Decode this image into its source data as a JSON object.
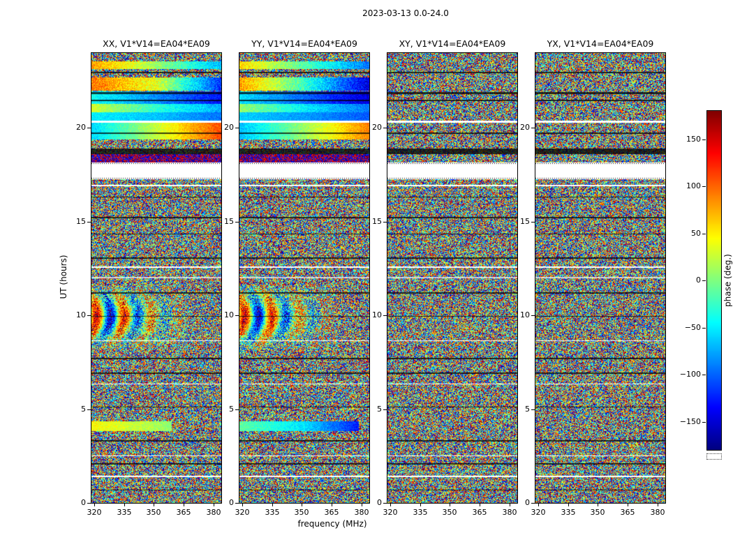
{
  "figure": {
    "title": "2023-03-13 0.0-24.0"
  },
  "chart_data": {
    "type": "heatmap",
    "title": "2023-03-13 0.0-24.0",
    "panels": [
      {
        "title": "XX, V1*V14=EA04*EA09"
      },
      {
        "title": "YY, V1*V14=EA04*EA09"
      },
      {
        "title": "XY, V1*V14=EA04*EA09"
      },
      {
        "title": "YX, V1*V14=EA04*EA09"
      }
    ],
    "xlabel": "frequency (MHz)",
    "ylabel": "UT (hours)",
    "x_ticks": [
      320,
      335,
      350,
      365,
      380
    ],
    "x_range": [
      318.75,
      383.75
    ],
    "y_ticks": [
      0,
      5,
      10,
      15,
      20
    ],
    "y_range": [
      0,
      24
    ],
    "value_field": "visibility phase",
    "noise_model": "uniform random phase -180..180 deg per pixel (incoherent speckle)",
    "colorbar": {
      "label": "phase (deg.)",
      "ticks": [
        150,
        100,
        50,
        0,
        -50,
        -100,
        -150
      ],
      "range": [
        -180,
        180
      ],
      "colormap": "jet"
    },
    "features": {
      "white_gaps": [
        [
          17.28,
          18.15
        ],
        [
          20.28,
          20.4
        ],
        [
          16.9,
          16.96
        ],
        [
          12.55,
          12.61
        ],
        [
          8.62,
          8.68
        ],
        [
          6.32,
          6.38
        ],
        [
          2.48,
          2.54
        ],
        [
          1.38,
          1.44
        ]
      ],
      "dark_rows": [
        [
          22.92,
          22.98
        ],
        [
          21.8,
          21.92
        ],
        [
          21.42,
          21.5
        ],
        [
          19.68,
          19.74
        ],
        [
          18.6,
          18.92
        ],
        [
          16.28,
          16.34
        ],
        [
          15.18,
          15.24
        ],
        [
          14.32,
          14.38
        ],
        [
          13.02,
          13.08
        ],
        [
          11.18,
          11.24
        ],
        [
          9.92,
          9.98
        ],
        [
          7.68,
          7.74
        ],
        [
          6.88,
          6.94
        ],
        [
          5.08,
          5.14
        ],
        [
          3.28,
          3.34
        ],
        [
          2.06,
          2.12
        ],
        [
          0.66,
          0.72
        ]
      ],
      "pale_rows": [
        [
          11.97,
          12.04
        ]
      ],
      "hot_rows": [
        [
          18.15,
          18.6
        ]
      ],
      "fringe_region": [
        8.2,
        11.6
      ],
      "smooth_bands_xx": [
        {
          "t0": 23.15,
          "t1": 23.55,
          "phases": [
            80,
            10,
            -70
          ],
          "noise": 25
        },
        {
          "t0": 22.0,
          "t1": 22.7,
          "phases": [
            95,
            35,
            -120
          ],
          "noise": 30
        },
        {
          "t0": 21.3,
          "t1": 21.95,
          "phases": [
            -40,
            -85,
            -130
          ],
          "noise": 20
        },
        {
          "t0": 20.85,
          "t1": 21.3,
          "phases": [
            30,
            -30,
            -75
          ],
          "noise": 20
        },
        {
          "t0": 20.4,
          "t1": 20.85,
          "phases": [
            -50,
            -65,
            -95
          ],
          "noise": 15
        },
        {
          "t0": 19.4,
          "t1": 20.28,
          "phases": [
            -60,
            25,
            110
          ],
          "noise": 18
        },
        {
          "t0": 3.85,
          "t1": 4.35,
          "phases": [
            45,
            15,
            -25
          ],
          "noise": 18,
          "xmax": 0.62
        }
      ],
      "smooth_bands_yy": [
        {
          "t0": 23.15,
          "t1": 23.55,
          "phases": [
            60,
            -15,
            -95
          ],
          "noise": 25
        },
        {
          "t0": 22.0,
          "t1": 22.7,
          "phases": [
            80,
            -25,
            -150
          ],
          "noise": 30
        },
        {
          "t0": 21.3,
          "t1": 21.95,
          "phases": [
            -55,
            -100,
            -150
          ],
          "noise": 20
        },
        {
          "t0": 20.85,
          "t1": 21.3,
          "phases": [
            10,
            -50,
            -95
          ],
          "noise": 20
        },
        {
          "t0": 20.4,
          "t1": 20.85,
          "phases": [
            -60,
            -80,
            -105
          ],
          "noise": 15
        },
        {
          "t0": 19.4,
          "t1": 20.28,
          "phases": [
            -70,
            10,
            90
          ],
          "noise": 18
        },
        {
          "t0": 3.85,
          "t1": 4.35,
          "phases": [
            -10,
            -55,
            -140
          ],
          "noise": 18,
          "xmax": 0.92
        }
      ]
    }
  }
}
